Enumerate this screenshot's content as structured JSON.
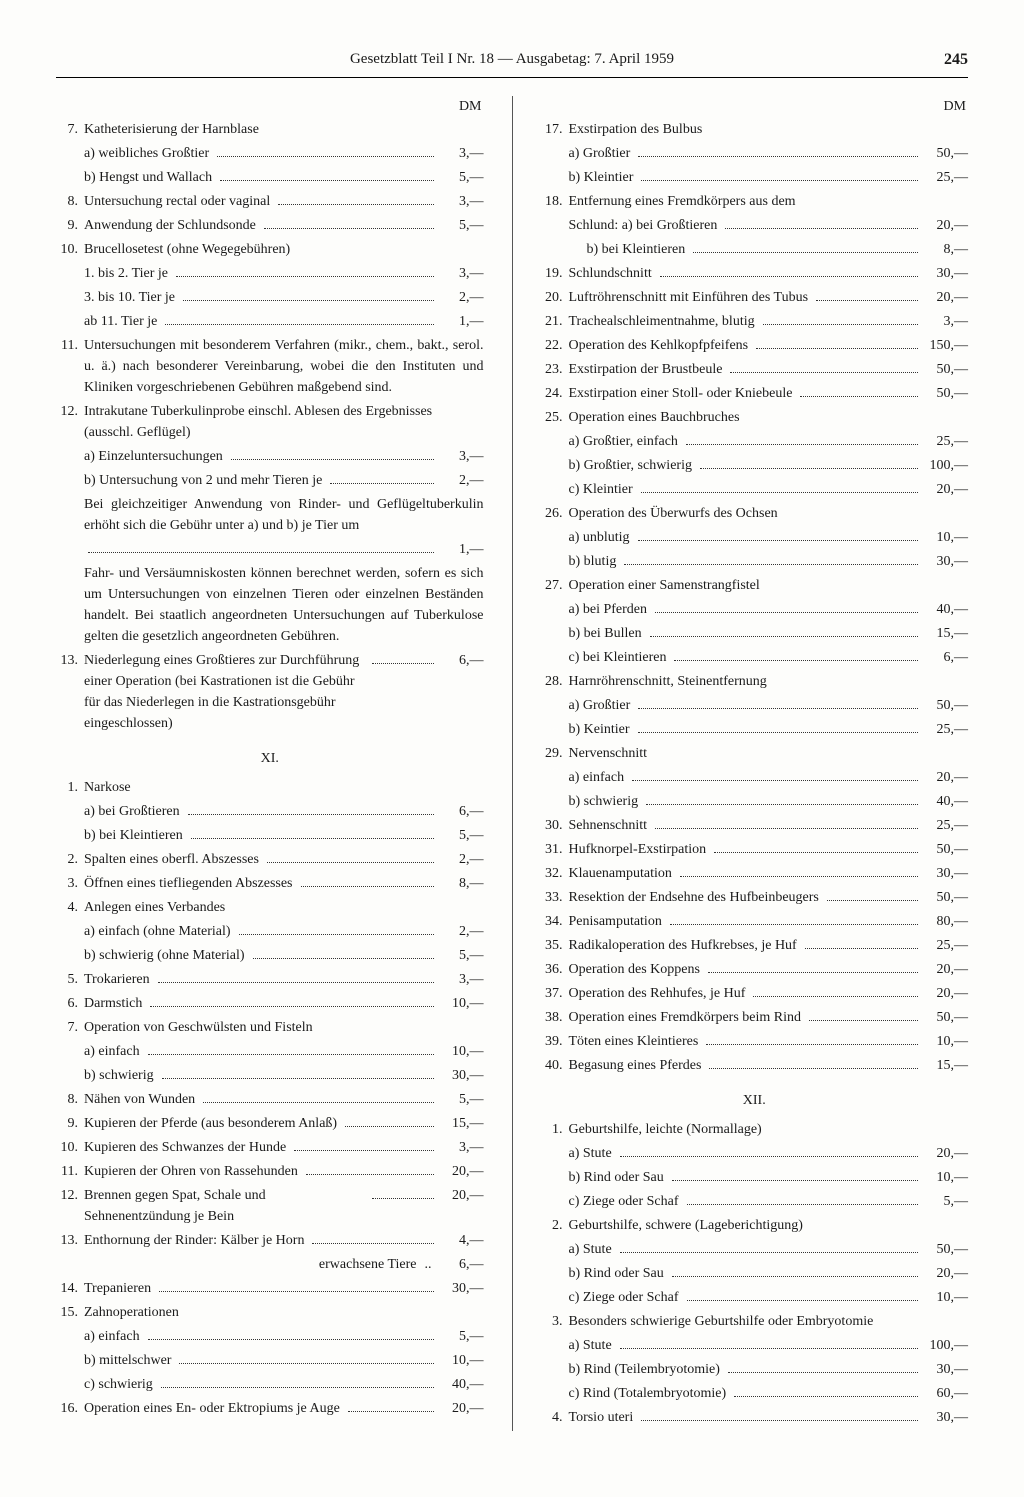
{
  "header": {
    "title": "Gesetzblatt Teil I Nr. 18 — Ausgabetag: 7. April 1959",
    "page": "245"
  },
  "currency": "DM",
  "sections": {
    "left_top": [
      {
        "n": "7.",
        "t": "Katheterisierung der Harnblase"
      },
      {
        "sub": "a) weibliches Großtier",
        "p": "3,—"
      },
      {
        "sub": "b) Hengst und Wallach",
        "p": "5,—"
      },
      {
        "n": "8.",
        "t": "Untersuchung rectal oder vaginal",
        "p": "3,—"
      },
      {
        "n": "9.",
        "t": "Anwendung der Schlundsonde",
        "p": "5,—"
      },
      {
        "n": "10.",
        "t": "Brucellosetest (ohne Wegegebühren)"
      },
      {
        "sub": "1. bis 2. Tier je",
        "p": "3,—"
      },
      {
        "sub": "3. bis 10. Tier je",
        "p": "2,—"
      },
      {
        "sub": "ab 11. Tier je",
        "p": "1,—"
      },
      {
        "n": "11.",
        "note": "Untersuchungen mit besonderem Verfahren (mikr., chem., bakt., serol. u. ä.) nach besonderer Vereinbarung, wobei die den Instituten und Kliniken vorgeschriebenen Gebühren maßgebend sind."
      },
      {
        "n": "12.",
        "t": "Intrakutane Tuberkulinprobe einschl. Ablesen des Ergebnisses (ausschl. Geflügel)"
      },
      {
        "sub": "a) Einzeluntersuchungen",
        "p": "3,—"
      },
      {
        "sub": "b) Untersuchung von 2 und mehr Tieren je",
        "p": "2,—"
      },
      {
        "note2": "Bei gleichzeitiger Anwendung von Rinder- und Geflügeltuberkulin erhöht sich die Gebühr unter a) und b) je Tier um",
        "p": "1,—"
      },
      {
        "note2": "Fahr- und Versäumniskosten können berechnet werden, sofern es sich um Untersuchungen von einzelnen Tieren oder einzelnen Beständen handelt. Bei staatlich angeordneten Untersuchungen auf Tuberkulose gelten die gesetzlich angeordneten Gebühren."
      },
      {
        "n": "13.",
        "t": "Niederlegung eines Großtieres zur Durchführung einer Operation (bei Kastrationen ist die Gebühr für das Niederlegen in die Kastrationsgebühr eingeschlossen)",
        "p": "6,—"
      }
    ],
    "xi": [
      {
        "n": "1.",
        "t": "Narkose"
      },
      {
        "sub": "a) bei Großtieren",
        "p": "6,—"
      },
      {
        "sub": "b) bei Kleintieren",
        "p": "5,—"
      },
      {
        "n": "2.",
        "t": "Spalten eines oberfl. Abszesses",
        "p": "2,—"
      },
      {
        "n": "3.",
        "t": "Öffnen eines tiefliegenden Abszesses",
        "p": "8,—"
      },
      {
        "n": "4.",
        "t": "Anlegen eines Verbandes"
      },
      {
        "sub": "a) einfach (ohne Material)",
        "p": "2,—"
      },
      {
        "sub": "b) schwierig (ohne Material)",
        "p": "5,—"
      },
      {
        "n": "5.",
        "t": "Trokarieren",
        "p": "3,—"
      },
      {
        "n": "6.",
        "t": "Darmstich",
        "p": "10,—"
      },
      {
        "n": "7.",
        "t": "Operation von Geschwülsten und Fisteln"
      },
      {
        "sub": "a) einfach",
        "p": "10,—"
      },
      {
        "sub": "b) schwierig",
        "p": "30,—"
      },
      {
        "n": "8.",
        "t": "Nähen von Wunden",
        "p": "5,—"
      },
      {
        "n": "9.",
        "t": "Kupieren der Pferde (aus besonderem Anlaß)",
        "p": "15,—"
      },
      {
        "n": "10.",
        "t": "Kupieren des Schwanzes der Hunde",
        "p": "3,—"
      },
      {
        "n": "11.",
        "t": "Kupieren der Ohren von Rassehunden",
        "p": "20,—"
      },
      {
        "n": "12.",
        "t": "Brennen gegen Spat, Schale und Sehnenentzündung je Bein",
        "p": "20,—"
      },
      {
        "n": "13.",
        "t": "Enthornung der Rinder: Kälber je Horn",
        "p": "4,—"
      },
      {
        "sub_right": "erwachsene Tiere",
        "p": "6,—",
        "nodots": true
      },
      {
        "n": "14.",
        "t": "Trepanieren",
        "p": "30,—"
      },
      {
        "n": "15.",
        "t": "Zahnoperationen"
      },
      {
        "sub": "a) einfach",
        "p": "5,—"
      },
      {
        "sub": "b) mittelschwer",
        "p": "10,—"
      },
      {
        "sub": "c) schwierig",
        "p": "40,—"
      },
      {
        "n": "16.",
        "t": "Operation eines En- oder Ektropiums je Auge",
        "p": "20,—"
      }
    ],
    "right_top": [
      {
        "n": "17.",
        "t": "Exstirpation des Bulbus"
      },
      {
        "sub": "a) Großtier",
        "p": "50,—"
      },
      {
        "sub": "b) Kleintier",
        "p": "25,—"
      },
      {
        "n": "18.",
        "t": "Entfernung eines Fremdkörpers aus dem"
      },
      {
        "sub": "Schlund: a) bei Großtieren",
        "p": "20,—"
      },
      {
        "sub2": "b) bei Kleintieren",
        "p": "8,—"
      },
      {
        "n": "19.",
        "t": "Schlundschnitt",
        "p": "30,—"
      },
      {
        "n": "20.",
        "t": "Luftröhrenschnitt mit Einführen des Tubus",
        "p": "20,—"
      },
      {
        "n": "21.",
        "t": "Trachealschleimentnahme, blutig",
        "p": "3,—"
      },
      {
        "n": "22.",
        "t": "Operation des Kehlkopfpfeifens",
        "p": "150,—"
      },
      {
        "n": "23.",
        "t": "Exstirpation der Brustbeule",
        "p": "50,—"
      },
      {
        "n": "24.",
        "t": "Exstirpation einer Stoll- oder Kniebeule",
        "p": "50,—"
      },
      {
        "n": "25.",
        "t": "Operation eines Bauchbruches"
      },
      {
        "sub": "a) Großtier, einfach",
        "p": "25,—"
      },
      {
        "sub": "b) Großtier, schwierig",
        "p": "100,—"
      },
      {
        "sub": "c) Kleintier",
        "p": "20,—"
      },
      {
        "n": "26.",
        "t": "Operation des Überwurfs des Ochsen"
      },
      {
        "sub": "a) unblutig",
        "p": "10,—"
      },
      {
        "sub": "b) blutig",
        "p": "30,—"
      },
      {
        "n": "27.",
        "t": "Operation einer Samenstrangfistel"
      },
      {
        "sub": "a) bei Pferden",
        "p": "40,—"
      },
      {
        "sub": "b) bei Bullen",
        "p": "15,—"
      },
      {
        "sub": "c) bei Kleintieren",
        "p": "6,—"
      },
      {
        "n": "28.",
        "t": "Harnröhrenschnitt, Steinentfernung"
      },
      {
        "sub": "a) Großtier",
        "p": "50,—"
      },
      {
        "sub": "b) Keintier",
        "p": "25,—"
      },
      {
        "n": "29.",
        "t": "Nervenschnitt"
      },
      {
        "sub": "a) einfach",
        "p": "20,—"
      },
      {
        "sub": "b) schwierig",
        "p": "40,—"
      },
      {
        "n": "30.",
        "t": "Sehnenschnitt",
        "p": "25,—"
      },
      {
        "n": "31.",
        "t": "Hufknorpel-Exstirpation",
        "p": "50,—"
      },
      {
        "n": "32.",
        "t": "Klauenamputation",
        "p": "30,—"
      },
      {
        "n": "33.",
        "t": "Resektion der Endsehne des Hufbeinbeugers",
        "p": "50,—"
      },
      {
        "n": "34.",
        "t": "Penisamputation",
        "p": "80,—"
      },
      {
        "n": "35.",
        "t": "Radikaloperation des Hufkrebses, je Huf",
        "p": "25,—"
      },
      {
        "n": "36.",
        "t": "Operation des Koppens",
        "p": "20,—"
      },
      {
        "n": "37.",
        "t": "Operation des Rehhufes, je Huf",
        "p": "20,—"
      },
      {
        "n": "38.",
        "t": "Operation eines Fremdkörpers beim Rind",
        "p": "50,—"
      },
      {
        "n": "39.",
        "t": "Töten eines Kleintieres",
        "p": "10,—"
      },
      {
        "n": "40.",
        "t": "Begasung eines Pferdes",
        "p": "15,—"
      }
    ],
    "xii": [
      {
        "n": "1.",
        "t": "Geburtshilfe, leichte (Normallage)"
      },
      {
        "sub": "a) Stute",
        "p": "20,—"
      },
      {
        "sub": "b) Rind oder Sau",
        "p": "10,—"
      },
      {
        "sub": "c) Ziege oder Schaf",
        "p": "5,—"
      },
      {
        "n": "2.",
        "t": "Geburtshilfe, schwere (Lageberichtigung)"
      },
      {
        "sub": "a) Stute",
        "p": "50,—"
      },
      {
        "sub": "b) Rind oder Sau",
        "p": "20,—"
      },
      {
        "sub": "c) Ziege oder Schaf",
        "p": "10,—"
      },
      {
        "n": "3.",
        "t": "Besonders schwierige Geburtshilfe oder Embryotomie"
      },
      {
        "sub": "a) Stute",
        "p": "100,—"
      },
      {
        "sub": "b) Rind (Teilembryotomie)",
        "p": "30,—"
      },
      {
        "sub": "c) Rind (Totalembryotomie)",
        "p": "60,—"
      },
      {
        "n": "4.",
        "t": "Torsio uteri",
        "p": "30,—"
      }
    ]
  },
  "section_heads": {
    "xi": "XI.",
    "xii": "XII."
  }
}
